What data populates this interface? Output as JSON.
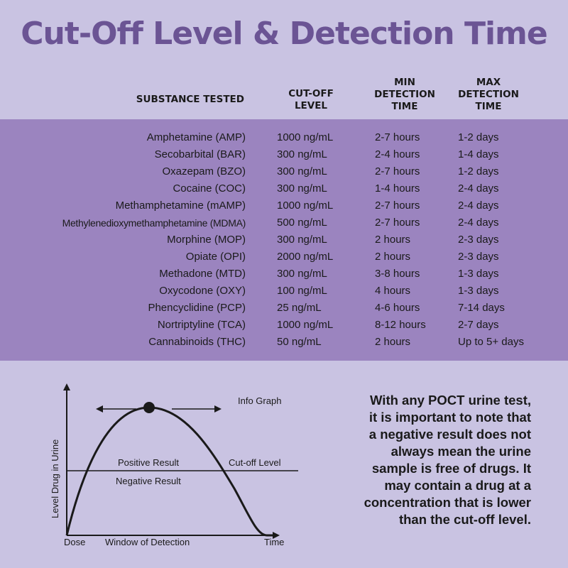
{
  "title": "Cut-Off Level & Detection Time",
  "headers": {
    "substance": "SUBSTANCE TESTED",
    "cutoff": [
      "CUT-OFF",
      "LEVEL"
    ],
    "min": [
      "MIN",
      "DETECTION",
      "TIME"
    ],
    "max": [
      "MAX",
      "DETECTION",
      "TIME"
    ]
  },
  "rows": [
    {
      "substance": "Amphetamine (AMP)",
      "cutoff": "1000 ng/mL",
      "min": "2-7 hours",
      "max": "1-2 days"
    },
    {
      "substance": "Secobarbital (BAR)",
      "cutoff": "300 ng/mL",
      "min": "2-4 hours",
      "max": "1-4 days"
    },
    {
      "substance": "Oxazepam (BZO)",
      "cutoff": "300 ng/mL",
      "min": "2-7 hours",
      "max": "1-2 days"
    },
    {
      "substance": "Cocaine (COC)",
      "cutoff": "300 ng/mL",
      "min": "1-4 hours",
      "max": "2-4 days"
    },
    {
      "substance": "Methamphetamine (mAMP)",
      "cutoff": "1000 ng/mL",
      "min": "2-7 hours",
      "max": "2-4 days"
    },
    {
      "substance": "Methylenedioxymethamphetamine (MDMA)",
      "cutoff": "500 ng/mL",
      "min": "2-7 hours",
      "max": "2-4 days"
    },
    {
      "substance": "Morphine (MOP)",
      "cutoff": "300 ng/mL",
      "min": "2 hours",
      "max": "2-3 days"
    },
    {
      "substance": "Opiate (OPI)",
      "cutoff": "2000 ng/mL",
      "min": "2 hours",
      "max": "2-3 days"
    },
    {
      "substance": "Methadone (MTD)",
      "cutoff": "300 ng/mL",
      "min": "3-8 hours",
      "max": "1-3 days"
    },
    {
      "substance": "Oxycodone (OXY)",
      "cutoff": "100 ng/mL",
      "min": "4 hours",
      "max": "1-3 days"
    },
    {
      "substance": "Phencyclidine (PCP)",
      "cutoff": "25 ng/mL",
      "min": "4-6 hours",
      "max": "7-14 days"
    },
    {
      "substance": "Nortriptyline (TCA)",
      "cutoff": "1000 ng/mL",
      "min": "8-12 hours",
      "max": "2-7 days"
    },
    {
      "substance": "Cannabinoids (THC)",
      "cutoff": "50 ng/mL",
      "min": "2 hours",
      "max": "Up to 5+ days"
    }
  ],
  "graph": {
    "info_label": "Info Graph",
    "y_axis_label": "Level Drug in Urine",
    "positive": "Positive Result",
    "negative": "Negative Result",
    "cutoff_label": "Cut-off Level",
    "dose": "Dose",
    "window": "Window of Detection",
    "time": "Time"
  },
  "info_text": "With any POCT urine test, it is important to note that a negative result does not always mean the urine sample is free of drugs. It may contain a drug at a concentration that is lower than the cut-off level.",
  "colors": {
    "background": "#c9c3e2",
    "table_band": "#9b84bf",
    "title": "#6b5494"
  }
}
